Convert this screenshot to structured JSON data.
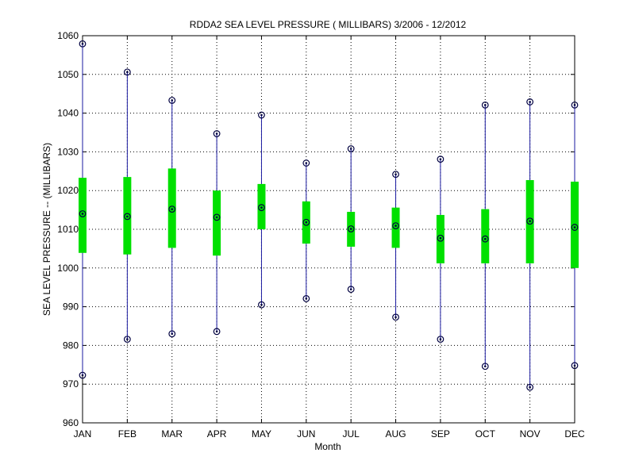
{
  "chart_data": {
    "type": "box",
    "title": "RDDA2  SEA LEVEL PRESSURE ( MILLIBARS) 3/2006 - 12/2012",
    "xlabel": "Month",
    "ylabel": "SEA LEVEL PRESSURE -- (MILLIBARS)",
    "ylim": [
      960,
      1060
    ],
    "yticks": [
      960,
      970,
      980,
      990,
      1000,
      1010,
      1020,
      1030,
      1040,
      1050,
      1060
    ],
    "grid": true,
    "categories": [
      "JAN",
      "FEB",
      "MAR",
      "APR",
      "MAY",
      "JUN",
      "JUL",
      "AUG",
      "SEP",
      "OCT",
      "NOV",
      "DEC"
    ],
    "min": [
      972.3,
      981.6,
      983.0,
      983.6,
      990.5,
      992.1,
      994.5,
      987.3,
      981.6,
      974.6,
      969.2,
      974.8
    ],
    "q1": [
      1003.9,
      1003.5,
      1005.2,
      1003.2,
      1010.0,
      1006.3,
      1005.5,
      1005.2,
      1001.2,
      1001.2,
      1001.2,
      1000.0
    ],
    "median": [
      1014.0,
      1013.3,
      1015.2,
      1013.1,
      1015.6,
      1011.8,
      1010.1,
      1010.9,
      1007.7,
      1007.5,
      1012.1,
      1010.5
    ],
    "q3": [
      1023.3,
      1023.5,
      1025.7,
      1020.0,
      1021.7,
      1017.2,
      1014.5,
      1015.6,
      1013.7,
      1015.2,
      1022.7,
      1022.3
    ],
    "max": [
      1057.9,
      1050.6,
      1043.3,
      1034.7,
      1039.5,
      1027.1,
      1030.8,
      1024.2,
      1028.1,
      1042.1,
      1042.9,
      1042.1
    ],
    "colors": {
      "whisker": "#1a1aa0",
      "box": "#00e000",
      "marker": "#000040",
      "grid": "#000000",
      "axis": "#000000"
    }
  }
}
